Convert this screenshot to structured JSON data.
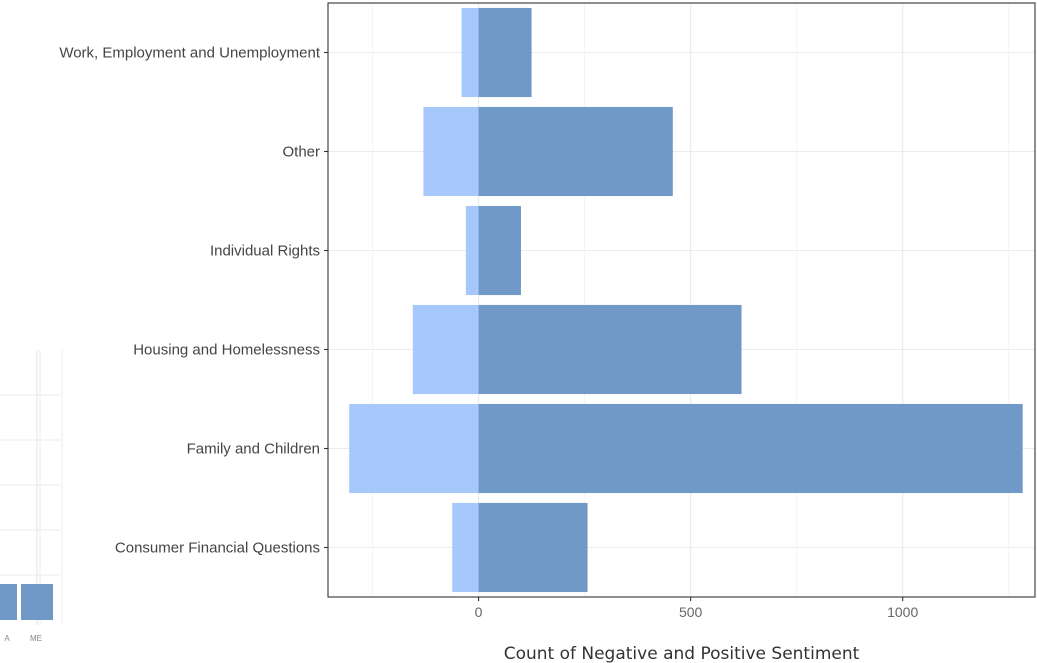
{
  "chart_data": [
    {
      "type": "bar",
      "orientation": "horizontal",
      "categories": [
        "Work, Employment and Unemployment",
        "Other",
        "Individual Rights",
        "Housing and Homelessness",
        "Family and Children",
        "Consumer Financial Questions"
      ],
      "series": [
        {
          "values": [
            -40,
            -130,
            -30,
            -155,
            -305,
            -62
          ],
          "color": "#a6c8fb"
        },
        {
          "values": [
            125,
            458,
            100,
            620,
            1283,
            257
          ],
          "color": "#7199c8"
        }
      ],
      "xlabel": "Count of Negative and Positive Sentiment",
      "ylabel": "",
      "xlim": [
        -355,
        1312
      ],
      "xticks": [
        0,
        500,
        1000
      ],
      "xtick_labels": [
        "0",
        "500",
        "1000"
      ],
      "grid": true
    },
    {
      "type": "bar",
      "partial": true,
      "categories": [
        "A",
        "ME"
      ],
      "values": [
        1,
        1
      ],
      "color": "#7199c8",
      "grid": true
    }
  ]
}
